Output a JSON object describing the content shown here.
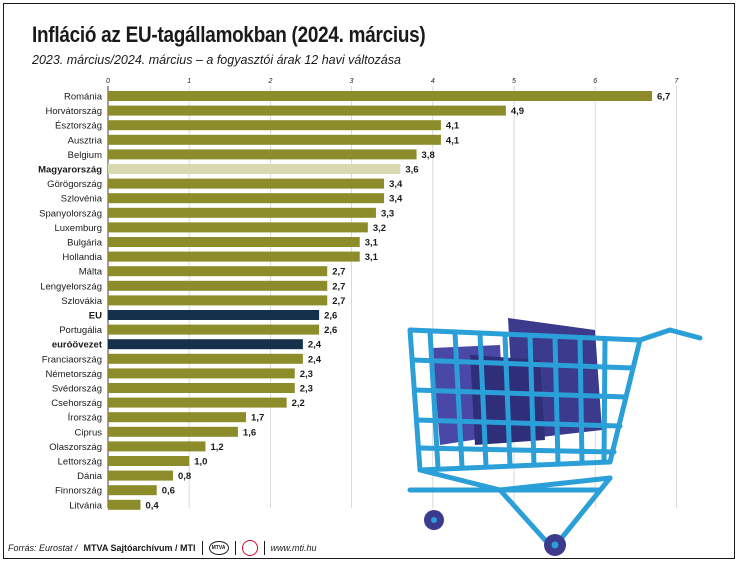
{
  "title": "Infláció az EU-tagállamokban (2024. március)",
  "subtitle": "2023. március/2024. március – a fogyasztói árak 12 havi változása",
  "footer": {
    "source": "Forrás: Eurostat /",
    "credit": "MTVA Sajtóarchívum / MTI",
    "url": "www.mti.hu",
    "logo_text": "MTVA"
  },
  "colors": {
    "default_bar": "#8c8c2a",
    "highlight_hu": "#d9d9b0",
    "highlight_eu": "#15304b",
    "text": "#1a1a1a",
    "cart": "#2a9fd8",
    "bag": "#3b3a8c"
  },
  "chart_data": {
    "type": "bar",
    "orientation": "horizontal",
    "xlim": [
      0,
      7
    ],
    "ticks": [
      "0",
      "1",
      "2",
      "3",
      "4",
      "5",
      "6",
      "7"
    ],
    "grid": true,
    "categories": [
      "Románia",
      "Horvátország",
      "Észtország",
      "Ausztria",
      "Belgium",
      "Magyarország",
      "Görögország",
      "Szlovénia",
      "Spanyolország",
      "Luxemburg",
      "Bulgária",
      "Hollandia",
      "Málta",
      "Lengyelország",
      "Szlovákia",
      "EU",
      "Portugália",
      "euróövezet",
      "Franciaország",
      "Németország",
      "Svédország",
      "Csehország",
      "Írország",
      "Ciprus",
      "Olaszország",
      "Lettország",
      "Dánia",
      "Finnország",
      "Litvánia"
    ],
    "values": [
      6.7,
      4.9,
      4.1,
      4.1,
      3.8,
      3.6,
      3.4,
      3.4,
      3.3,
      3.2,
      3.1,
      3.1,
      2.7,
      2.7,
      2.7,
      2.6,
      2.6,
      2.4,
      2.4,
      2.3,
      2.3,
      2.2,
      1.7,
      1.6,
      1.2,
      1.0,
      0.8,
      0.6,
      0.4
    ],
    "value_labels": [
      "6,7",
      "4,9",
      "4,1",
      "4,1",
      "3,8",
      "3,6",
      "3,4",
      "3,4",
      "3,3",
      "3,2",
      "3,1",
      "3,1",
      "2,7",
      "2,7",
      "2,7",
      "2,6",
      "2,6",
      "2,4",
      "2,4",
      "2,3",
      "2,3",
      "2,2",
      "1,7",
      "1,6",
      "1,2",
      "1,0",
      "0,8",
      "0,6",
      "0,4"
    ],
    "highlight": {
      "Magyarország": "hu",
      "EU": "eu",
      "euróövezet": "eu"
    },
    "bold_categories": [
      "Magyarország",
      "EU",
      "euróövezet"
    ]
  }
}
